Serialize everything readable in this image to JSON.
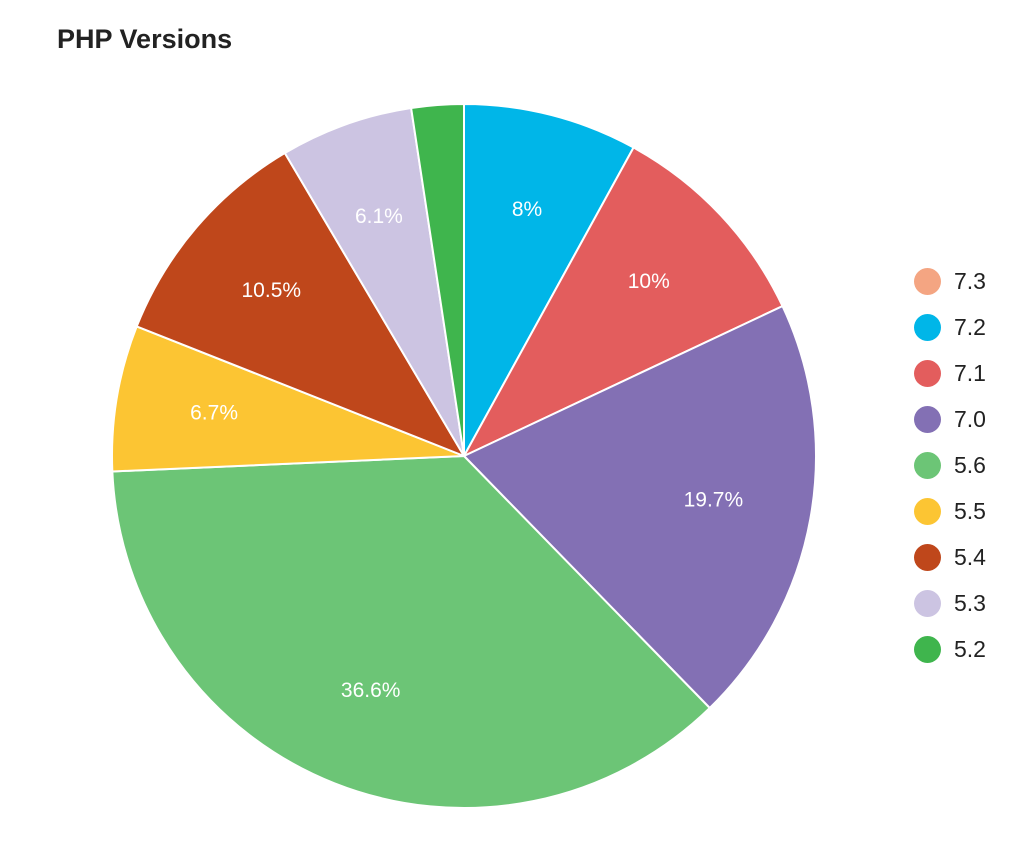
{
  "chart_data": {
    "type": "pie",
    "title": "PHP Versions",
    "legend_position": "right",
    "start_angle_deg": 0,
    "direction": "clockwise",
    "slices": [
      {
        "label": "7.3",
        "value": 0.0,
        "color": "#f4a582",
        "display": ""
      },
      {
        "label": "7.2",
        "value": 8.0,
        "color": "#00b6e8",
        "display": "8%"
      },
      {
        "label": "7.1",
        "value": 10.0,
        "color": "#e35d5d",
        "display": "10%"
      },
      {
        "label": "7.0",
        "value": 19.7,
        "color": "#8370b4",
        "display": "19.7%"
      },
      {
        "label": "5.6",
        "value": 36.6,
        "color": "#6cc576",
        "display": "36.6%"
      },
      {
        "label": "5.5",
        "value": 6.7,
        "color": "#fcc533",
        "display": "6.7%"
      },
      {
        "label": "5.4",
        "value": 10.5,
        "color": "#bf471b",
        "display": "10.5%"
      },
      {
        "label": "5.3",
        "value": 6.1,
        "color": "#ccc4e2",
        "display": "6.1%"
      },
      {
        "label": "5.2",
        "value": 2.4,
        "color": "#3fb54d",
        "display": ""
      }
    ]
  }
}
